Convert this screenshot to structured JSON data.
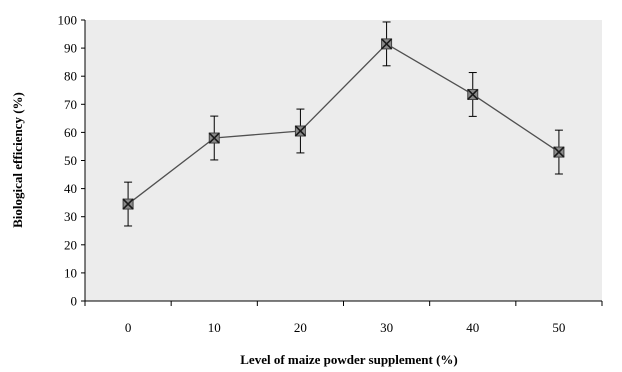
{
  "chart_data": {
    "type": "line",
    "title": "",
    "xlabel": "Level of maize powder supplement (%)",
    "ylabel": "Biological efficiency (%)",
    "categories": [
      "0",
      "10",
      "20",
      "30",
      "40",
      "50"
    ],
    "series": [
      {
        "values": [
          34.5,
          58.0,
          60.5,
          91.5,
          73.5,
          53.0
        ],
        "error": [
          7.8,
          7.8,
          7.8,
          7.8,
          7.8,
          7.8
        ]
      }
    ],
    "ylim": [
      0,
      100
    ],
    "yticks": [
      0,
      10,
      20,
      30,
      40,
      50,
      60,
      70,
      80,
      90,
      100
    ],
    "grid": false,
    "legend": "none",
    "colors": {
      "plot_background": "#ececec",
      "line": "#505050",
      "marker": "#404040",
      "axis": "#000000"
    }
  }
}
